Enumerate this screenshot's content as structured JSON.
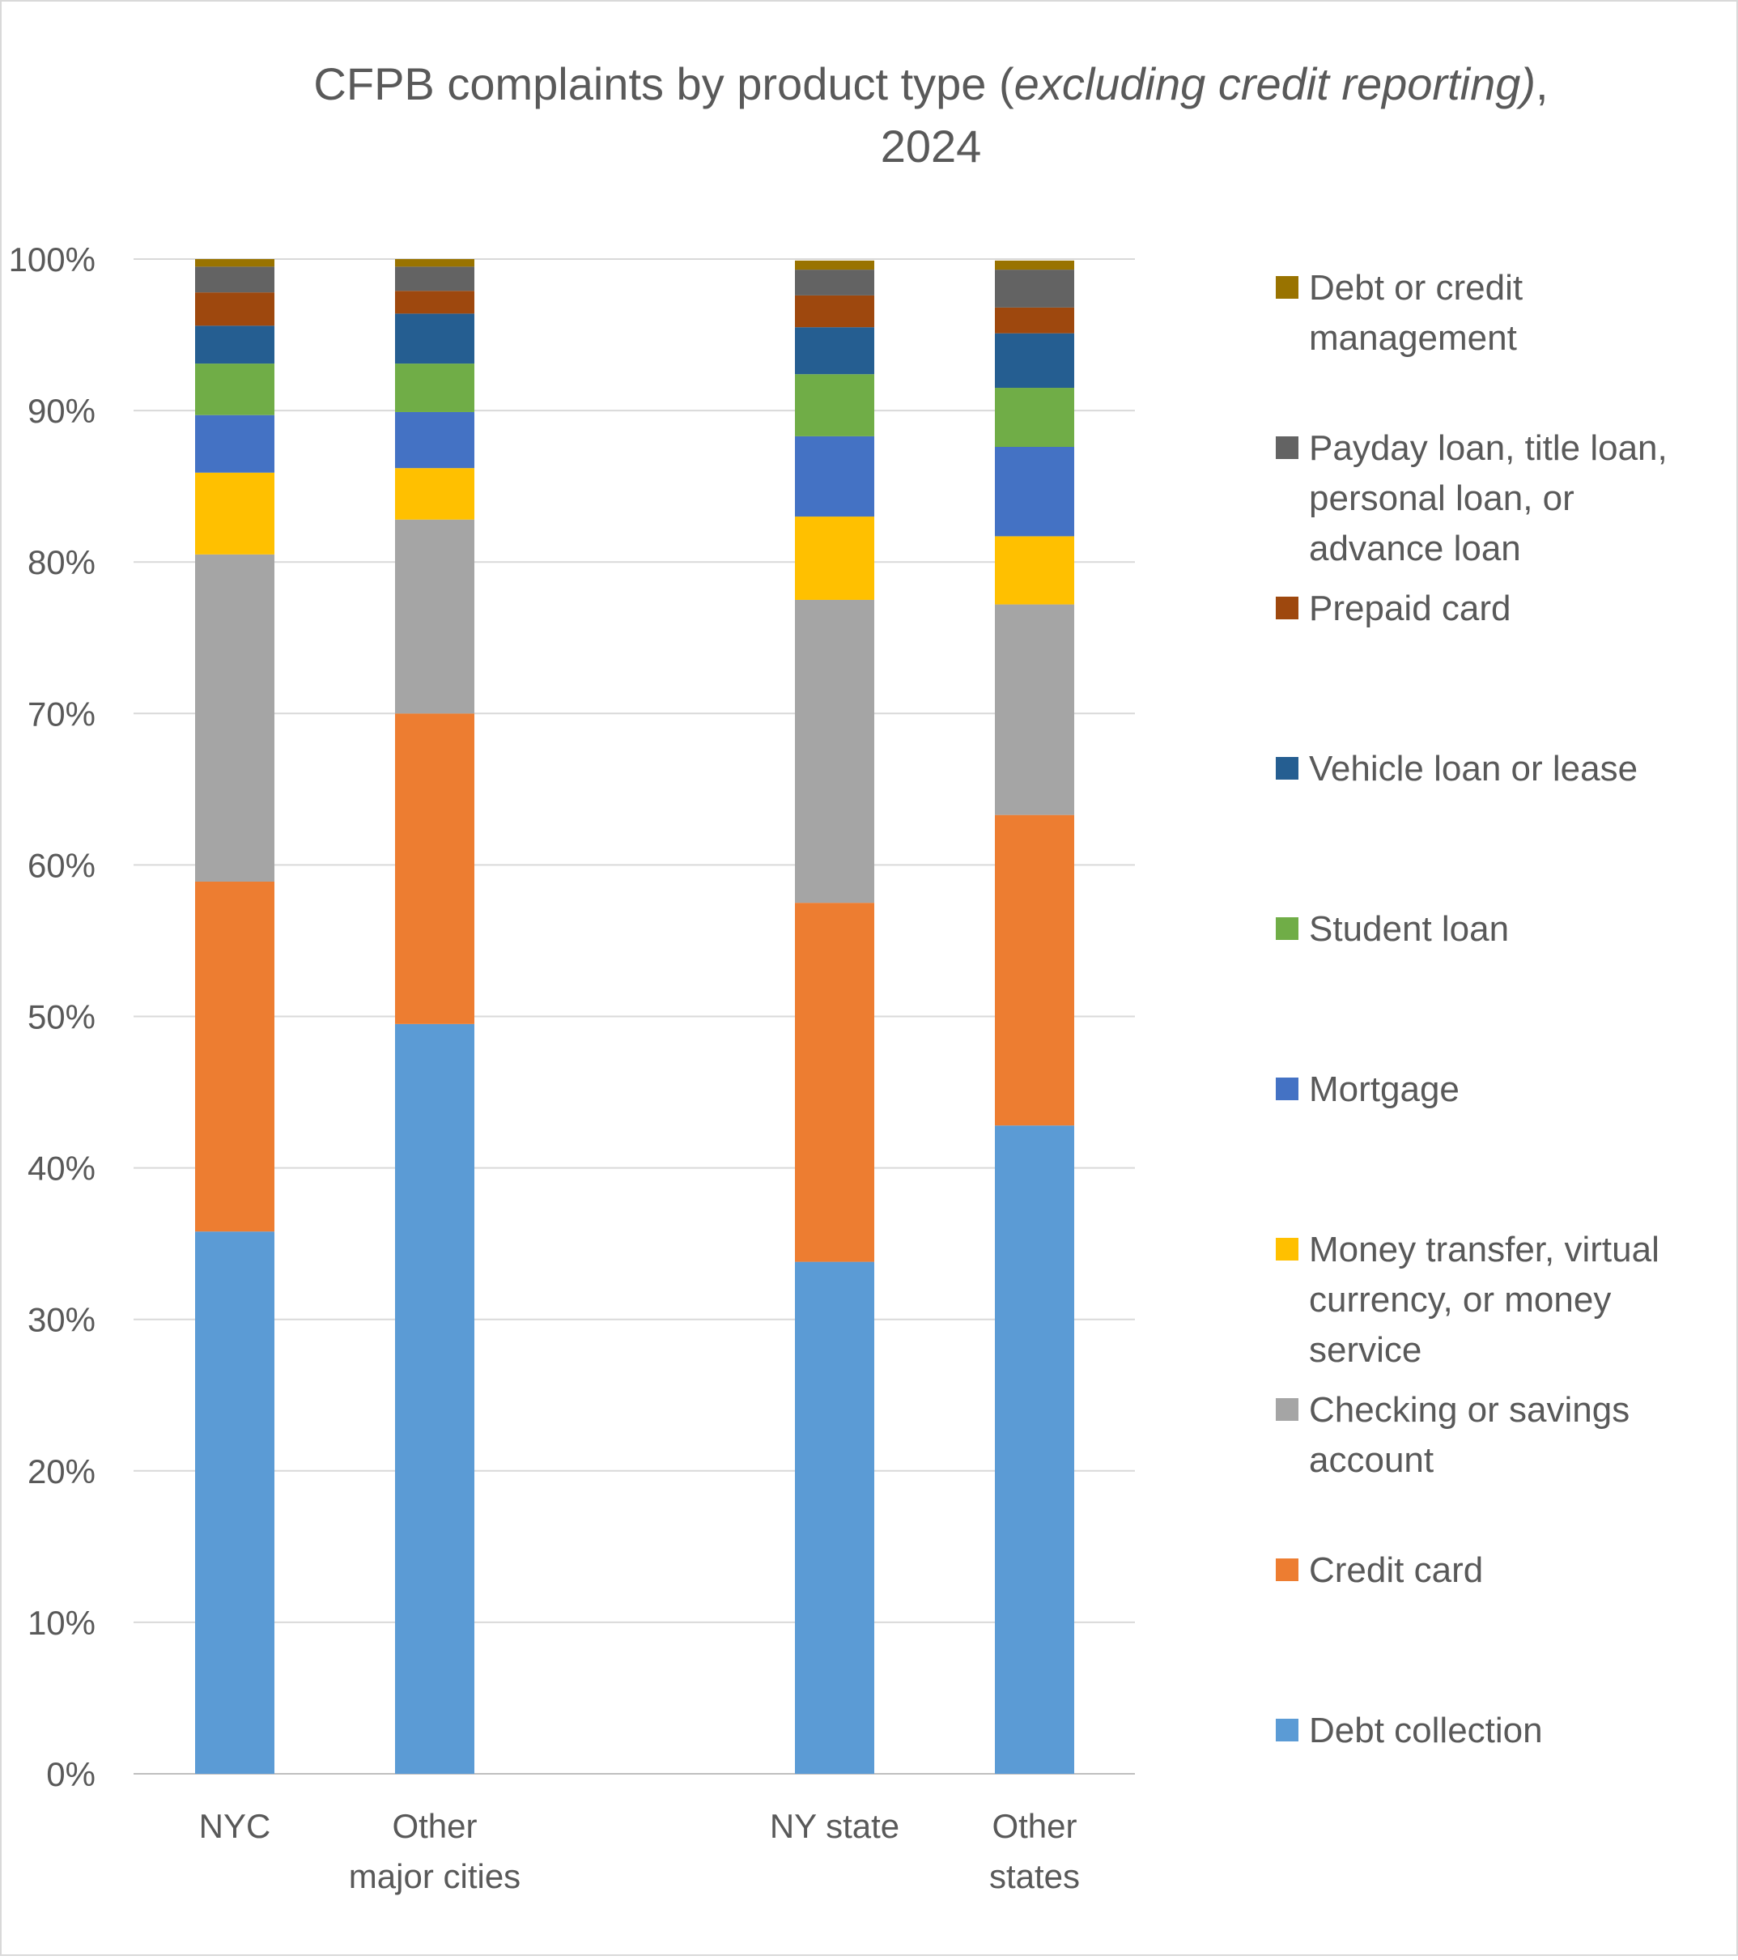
{
  "chart_data": {
    "type": "bar",
    "stacked": true,
    "title": {
      "prefix": "CFPB complaints by product type (",
      "emphasis": "excluding credit reporting)",
      "suffix": ",",
      "line2": "2024"
    },
    "xlabel": "",
    "ylabel": "",
    "ylim": [
      0,
      100
    ],
    "y_ticks": [
      "0%",
      "10%",
      "20%",
      "30%",
      "40%",
      "50%",
      "60%",
      "70%",
      "80%",
      "90%",
      "100%"
    ],
    "grid": true,
    "legend_position": "right",
    "categories": [
      {
        "lines": [
          "NYC"
        ]
      },
      {
        "lines": [
          "Other",
          "major cities"
        ]
      },
      {
        "lines": [
          "NY state"
        ]
      },
      {
        "lines": [
          "Other",
          "states"
        ]
      }
    ],
    "series": [
      {
        "name": "Debt collection",
        "legend_lines": [
          "Debt collection"
        ],
        "color": "#5B9BD5",
        "values": [
          35.8,
          49.5,
          33.8,
          42.8
        ]
      },
      {
        "name": "Credit card",
        "legend_lines": [
          "Credit card"
        ],
        "color": "#ED7D31",
        "values": [
          23.1,
          20.5,
          23.7,
          20.5
        ]
      },
      {
        "name": "Checking or savings account",
        "legend_lines": [
          "Checking or savings",
          "account"
        ],
        "color": "#A5A5A5",
        "values": [
          21.6,
          12.8,
          20.0,
          13.9
        ]
      },
      {
        "name": "Money transfer, virtual currency, or money service",
        "legend_lines": [
          "Money transfer, virtual",
          "currency, or money",
          "service"
        ],
        "color": "#FFC000",
        "values": [
          5.4,
          3.4,
          5.5,
          4.5
        ]
      },
      {
        "name": "Mortgage",
        "legend_lines": [
          "Mortgage"
        ],
        "color": "#4472C4",
        "values": [
          3.8,
          3.7,
          5.3,
          5.9
        ]
      },
      {
        "name": "Student loan",
        "legend_lines": [
          "Student loan"
        ],
        "color": "#70AD47",
        "values": [
          3.4,
          3.2,
          4.1,
          3.9
        ]
      },
      {
        "name": "Vehicle loan or lease",
        "legend_lines": [
          "Vehicle loan or lease"
        ],
        "color": "#255E91",
        "values": [
          2.5,
          3.3,
          3.1,
          3.6
        ]
      },
      {
        "name": "Prepaid card",
        "legend_lines": [
          "Prepaid card"
        ],
        "color": "#9E480E",
        "values": [
          2.2,
          1.5,
          2.1,
          1.7
        ]
      },
      {
        "name": "Payday loan, title loan, personal loan, or advance loan",
        "legend_lines": [
          "Payday loan, title loan,",
          "personal loan, or",
          "advance loan"
        ],
        "color": "#636363",
        "values": [
          1.7,
          1.6,
          1.7,
          2.5
        ]
      },
      {
        "name": "Debt or credit management",
        "legend_lines": [
          "Debt or credit",
          "management"
        ],
        "color": "#997300",
        "values": [
          0.5,
          0.5,
          0.6,
          0.6
        ]
      }
    ]
  }
}
